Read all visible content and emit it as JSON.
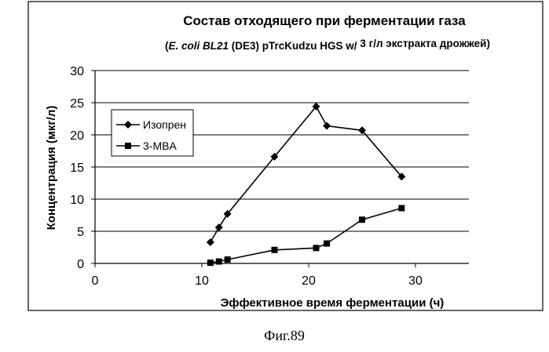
{
  "chart_data": {
    "type": "line",
    "title": "Состав отходящего при ферментации газа",
    "subtitle": {
      "open_paren": "(",
      "strain": "E. coli BL21",
      "rest": " (DE3) pTrcKudzu HGS w/",
      "yeast": " 3 г/л экстракта дрожжей)"
    },
    "xlabel": "Эффективное время ферментации (ч)",
    "ylabel": "Концентрация (мкг/л)",
    "xlim": [
      0,
      35
    ],
    "ylim": [
      0,
      30
    ],
    "xticks": [
      0,
      10,
      20,
      30
    ],
    "yticks": [
      0,
      5,
      10,
      15,
      20,
      25,
      30
    ],
    "grid": "horizontal",
    "legend_position": "left-middle",
    "series": [
      {
        "name": "Изопрен",
        "marker": "diamond",
        "points": [
          {
            "x": 10.8,
            "y": 3.3
          },
          {
            "x": 11.6,
            "y": 5.6
          },
          {
            "x": 12.4,
            "y": 7.7
          },
          {
            "x": 16.8,
            "y": 16.6
          },
          {
            "x": 20.7,
            "y": 24.4
          },
          {
            "x": 21.7,
            "y": 21.4
          },
          {
            "x": 25.0,
            "y": 20.7
          },
          {
            "x": 28.7,
            "y": 13.5
          }
        ]
      },
      {
        "name": "3-MBA",
        "marker": "square",
        "points": [
          {
            "x": 10.8,
            "y": 0.1
          },
          {
            "x": 11.6,
            "y": 0.3
          },
          {
            "x": 12.4,
            "y": 0.6
          },
          {
            "x": 16.8,
            "y": 2.1
          },
          {
            "x": 20.7,
            "y": 2.4
          },
          {
            "x": 21.7,
            "y": 3.1
          },
          {
            "x": 25.0,
            "y": 6.8
          },
          {
            "x": 28.7,
            "y": 8.6
          }
        ]
      }
    ]
  },
  "caption": "Фиг.89"
}
